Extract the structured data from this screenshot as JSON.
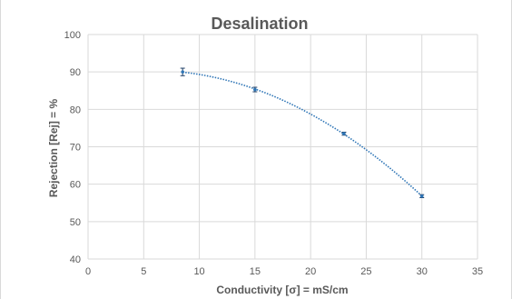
{
  "chart_data": {
    "type": "scatter",
    "title": "Desalination",
    "xlabel": "Conductivity [σ] = mS/cm",
    "ylabel": "Rejection [Rej] = %",
    "xlim": [
      0,
      35
    ],
    "ylim": [
      40,
      100
    ],
    "x_ticks": [
      "0",
      "5",
      "10",
      "15",
      "20",
      "25",
      "30",
      "35"
    ],
    "y_ticks": [
      "40",
      "50",
      "60",
      "70",
      "80",
      "90",
      "100"
    ],
    "grid": true,
    "series": [
      {
        "x": [
          8.5,
          15,
          23,
          30
        ],
        "y": [
          90,
          85.3,
          73.5,
          56.8
        ],
        "error": [
          1.0,
          0.6,
          0.4,
          0.4
        ],
        "color": "#2e75b6",
        "trendline": "polynomial"
      }
    ]
  }
}
